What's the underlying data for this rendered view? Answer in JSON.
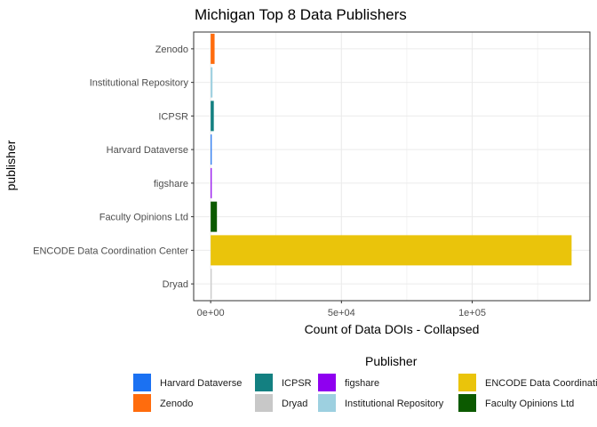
{
  "chart_data": {
    "type": "bar",
    "orientation": "horizontal",
    "title": "Michigan Top 8 Data Publishers",
    "xlabel": "Count of Data DOIs - Collapsed",
    "ylabel": "publisher",
    "categories_top_to_bottom": [
      "Zenodo",
      "Institutional Repository",
      "ICPSR",
      "Harvard Dataverse",
      "figshare",
      "Faculty Opinions Ltd",
      "ENCODE Data Coordination Center",
      "Dryad"
    ],
    "values": [
      1500,
      700,
      1200,
      400,
      350,
      2400,
      138000,
      150
    ],
    "colors": [
      "#FF6C0D",
      "#9DD0E0",
      "#138081",
      "#1B71F2",
      "#8F00F0",
      "#0C5A00",
      "#EAC40B",
      "#C8C8C8"
    ],
    "xlim": [
      -6500,
      145000
    ],
    "x_ticks": [
      {
        "value": 0,
        "label": "0e+00"
      },
      {
        "value": 50000,
        "label": "5e+04"
      },
      {
        "value": 100000,
        "label": "1e+05"
      }
    ],
    "x_minor_ticks": [
      25000,
      75000,
      125000
    ],
    "grid": true,
    "legend": {
      "title": "Publisher",
      "position": "bottom",
      "columns": [
        [
          {
            "label": "Harvard Dataverse",
            "color": "#1B71F2"
          },
          {
            "label": "Zenodo",
            "color": "#FF6C0D"
          }
        ],
        [
          {
            "label": "ICPSR",
            "color": "#138081"
          },
          {
            "label": "Dryad",
            "color": "#C8C8C8"
          }
        ],
        [
          {
            "label": "figshare",
            "color": "#8F00F0"
          },
          {
            "label": "Institutional Repository",
            "color": "#9DD0E0"
          }
        ],
        [
          {
            "label": "ENCODE Data Coordination Center",
            "color": "#EAC40B"
          },
          {
            "label": "Faculty Opinions Ltd",
            "color": "#0C5A00"
          }
        ]
      ]
    }
  }
}
